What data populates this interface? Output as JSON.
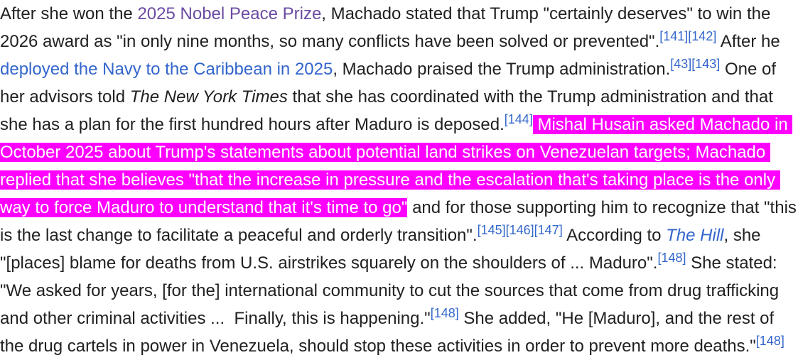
{
  "highlight_color": "#ff00ff",
  "link_color": "#3366cc",
  "visited_link_color": "#6b4ba1",
  "lines": [
    [
      {
        "t": "text",
        "v": "After she won the "
      },
      {
        "t": "visited",
        "v": "2025 Nobel Peace Prize"
      },
      {
        "t": "text",
        "v": ", Machado stated that Trump \"certainly deserves\" to win the"
      }
    ],
    [
      {
        "t": "text",
        "v": "2026 award as \"in only nine months, so many conflicts have been solved or prevented\"."
      },
      {
        "t": "ref",
        "v": "[141]"
      },
      {
        "t": "ref",
        "v": "[142]"
      },
      {
        "t": "text",
        "v": " After he"
      }
    ],
    [
      {
        "t": "link",
        "v": "deployed the Navy to the Caribbean in 2025"
      },
      {
        "t": "text",
        "v": ", Machado praised the Trump administration."
      },
      {
        "t": "ref",
        "v": "[43]"
      },
      {
        "t": "ref",
        "v": "[143]"
      },
      {
        "t": "text",
        "v": " One of"
      }
    ],
    [
      {
        "t": "text",
        "v": "her advisors told "
      },
      {
        "t": "ital",
        "v": "The New York Times"
      },
      {
        "t": "text",
        "v": " that she has coordinated with the Trump administration and that"
      }
    ],
    [
      {
        "t": "text",
        "v": "she has a plan for the first hundred hours after Maduro is deposed."
      },
      {
        "t": "ref",
        "v": "[144]"
      },
      {
        "t": "hl",
        "v": " Mishal Husain asked Machado in "
      }
    ],
    [
      {
        "t": "hl",
        "v": "October 2025 about Trump's statements about potential land strikes on Venezuelan targets; Machado "
      }
    ],
    [
      {
        "t": "hl",
        "v": "replied that she believes \"that the increase in pressure and the escalation that's taking place is the only "
      }
    ],
    [
      {
        "t": "hl",
        "v": "way to force Maduro to understand that it's time to go\""
      },
      {
        "t": "text",
        "v": " and for those supporting him to recognize that \"this"
      }
    ],
    [
      {
        "t": "text",
        "v": "is the last change to facilitate a peaceful and orderly transition\"."
      },
      {
        "t": "ref",
        "v": "[145]"
      },
      {
        "t": "ref",
        "v": "[146]"
      },
      {
        "t": "ref",
        "v": "[147]"
      },
      {
        "t": "text",
        "v": " According to "
      },
      {
        "t": "itallink",
        "v": "The Hill"
      },
      {
        "t": "text",
        "v": ", she"
      }
    ],
    [
      {
        "t": "text",
        "v": "\"[places] blame for deaths from U.S. airstrikes squarely on the shoulders of ... Maduro\"."
      },
      {
        "t": "ref",
        "v": "[148]"
      },
      {
        "t": "text",
        "v": " She stated:"
      }
    ],
    [
      {
        "t": "text",
        "v": "\"We asked for years, [for the] international community to cut the sources that come from drug trafficking"
      }
    ],
    [
      {
        "t": "text",
        "v": "and other criminal activities ...  Finally, this is happening.\""
      },
      {
        "t": "ref",
        "v": "[148]"
      },
      {
        "t": "text",
        "v": " She added, \"He [Maduro], and the rest of"
      }
    ],
    [
      {
        "t": "text",
        "v": "the drug cartels in power in Venezuela, should stop these activities in order to prevent more deaths.\""
      },
      {
        "t": "ref",
        "v": "[148]"
      }
    ]
  ]
}
